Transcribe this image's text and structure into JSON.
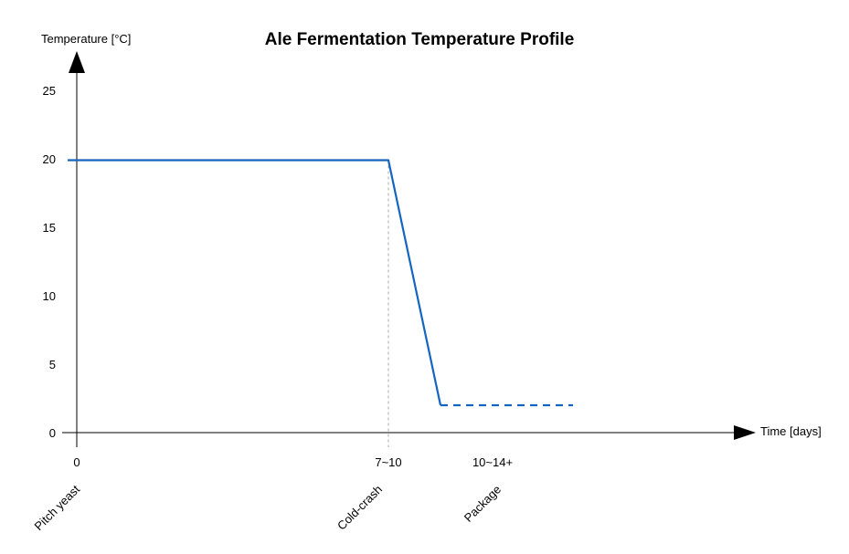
{
  "chart_data": {
    "type": "line",
    "title": "Ale Fermentation Temperature Profile",
    "ylabel": "Temperature [°C]",
    "xlabel": "Time [days]",
    "ylim": [
      0,
      25
    ],
    "yticks": [
      0,
      5,
      10,
      15,
      20,
      25
    ],
    "xticks": [
      {
        "label": "0",
        "phase": "Pitch yeast"
      },
      {
        "label": "7~10",
        "phase": "Cold-crash"
      },
      {
        "label": "10~14+",
        "phase": "Package"
      }
    ],
    "series": [
      {
        "color": "#1565c0",
        "segments": [
          {
            "style": "solid",
            "points": [
              [
                0,
                19.9
              ],
              [
                7,
                19.9
              ],
              [
                8,
                2
              ]
            ]
          },
          {
            "style": "dashed",
            "points": [
              [
                8,
                2
              ],
              [
                11,
                2
              ]
            ]
          }
        ]
      }
    ],
    "reference_lines": [
      {
        "x": 7,
        "style": "dashed",
        "color": "#aaaaaa"
      }
    ],
    "grid": false,
    "legend": "none"
  }
}
